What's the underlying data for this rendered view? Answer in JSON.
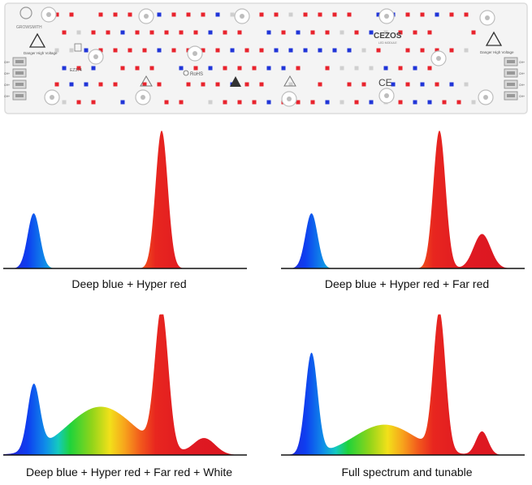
{
  "board": {
    "brand_text": "GROWSMITH",
    "model_text": "CEZOS",
    "model_subtext": "LED MODULE",
    "part_number": "EZ374",
    "rohs_text": "RoHS",
    "ce_text": "CE",
    "warning_label": "Danger High Voltage",
    "connector_label": "CH+",
    "colors": {
      "pcb": "#f4f4f4",
      "pcb_edge": "#dcdcdc",
      "led_red": "#e8232d",
      "led_blue": "#2035d8",
      "led_pad": "#cfcfcf",
      "hole": "#bdbdbd"
    }
  },
  "panels": [
    {
      "caption": "Deep blue + Hyper red"
    },
    {
      "caption": "Deep blue + Hyper red + Far red"
    },
    {
      "caption": "Deep blue + Hyper red + Far red + White"
    },
    {
      "caption": "Full spectrum and tunable"
    }
  ],
  "chart_data": [
    {
      "type": "area",
      "x": [
        400,
        800
      ],
      "series": [
        {
          "peaks": [
            {
              "center": 450,
              "height": 0.4,
              "width": 10
            },
            {
              "center": 660,
              "height": 1.0,
              "width": 10
            }
          ]
        }
      ]
    },
    {
      "type": "area",
      "x": [
        400,
        800
      ],
      "series": [
        {
          "peaks": [
            {
              "center": 450,
              "height": 0.4,
              "width": 10
            },
            {
              "center": 660,
              "height": 1.0,
              "width": 10
            },
            {
              "center": 730,
              "height": 0.25,
              "width": 14
            }
          ]
        }
      ]
    },
    {
      "type": "area",
      "x": [
        400,
        800
      ],
      "series": [
        {
          "peaks": [
            {
              "center": 450,
              "height": 0.47,
              "width": 10
            },
            {
              "center": 560,
              "height": 0.35,
              "width": 55
            },
            {
              "center": 660,
              "height": 1.0,
              "width": 11
            },
            {
              "center": 730,
              "height": 0.12,
              "width": 18
            }
          ]
        }
      ]
    },
    {
      "type": "area",
      "x": [
        400,
        800
      ],
      "series": [
        {
          "peaks": [
            {
              "center": 450,
              "height": 0.73,
              "width": 10
            },
            {
              "center": 570,
              "height": 0.22,
              "width": 50
            },
            {
              "center": 660,
              "height": 1.0,
              "width": 10
            },
            {
              "center": 730,
              "height": 0.17,
              "width": 10
            }
          ]
        }
      ]
    }
  ]
}
